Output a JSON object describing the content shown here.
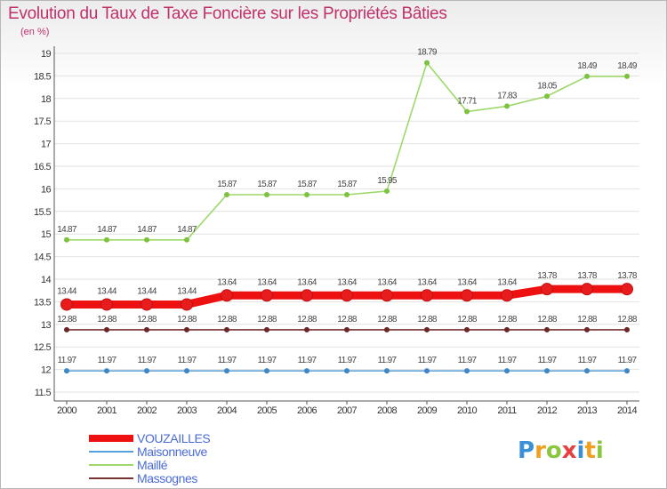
{
  "chart_data": {
    "type": "line",
    "title": "Evolution du Taux de Taxe Foncière sur les Propriétés Bâties",
    "ylabel": "(en %)",
    "xlabel": "",
    "x": [
      "2000",
      "2001",
      "2002",
      "2003",
      "2004",
      "2005",
      "2006",
      "2007",
      "2008",
      "2009",
      "2010",
      "2011",
      "2012",
      "2013",
      "2014"
    ],
    "ylim": [
      11.5,
      19
    ],
    "yticks": [
      "11.5",
      "12",
      "12.5",
      "13",
      "13.5",
      "14",
      "14.5",
      "15",
      "15.5",
      "16",
      "16.5",
      "17",
      "17.5",
      "18",
      "18.5",
      "19"
    ],
    "series": [
      {
        "name": "VOUZAILLES",
        "color": "#ee1111",
        "marker": "#e81c1c",
        "width": 9,
        "values": [
          13.44,
          13.44,
          13.44,
          13.44,
          13.64,
          13.64,
          13.64,
          13.64,
          13.64,
          13.64,
          13.64,
          13.64,
          13.78,
          13.78,
          13.78
        ],
        "labels": [
          "13.44",
          "13.44",
          "13.44",
          "13.44",
          "13.64",
          "13.64",
          "13.64",
          "13.64",
          "13.64",
          "13.64",
          "13.64",
          "13.64",
          "13.78",
          "13.78",
          "13.78"
        ]
      },
      {
        "name": "Maisonneuve",
        "color": "#5aa0d8",
        "marker": "#3f86c6",
        "width": 1.6,
        "values": [
          11.97,
          11.97,
          11.97,
          11.97,
          11.97,
          11.97,
          11.97,
          11.97,
          11.97,
          11.97,
          11.97,
          11.97,
          11.97,
          11.97,
          11.97
        ],
        "labels": [
          "11.97",
          "11.97",
          "11.97",
          "11.97",
          "11.97",
          "11.97",
          "11.97",
          "11.97",
          "11.97",
          "11.97",
          "11.97",
          "11.97",
          "11.97",
          "11.97",
          "11.97"
        ]
      },
      {
        "name": "Maillé",
        "color": "#9fd86a",
        "marker": "#7cc23e",
        "width": 1.6,
        "values": [
          14.87,
          14.87,
          14.87,
          14.87,
          15.87,
          15.87,
          15.87,
          15.87,
          15.95,
          18.79,
          17.71,
          17.83,
          18.05,
          18.49,
          18.49
        ],
        "labels": [
          "14.87",
          "14.87",
          "14.87",
          "14.87",
          "15.87",
          "15.87",
          "15.87",
          "15.87",
          "15.95",
          "18.79",
          "17.71",
          "17.83",
          "18.05",
          "18.49",
          "18.49"
        ]
      },
      {
        "name": "Massognes",
        "color": "#7a3333",
        "marker": "#6a2626",
        "width": 1.6,
        "values": [
          12.88,
          12.88,
          12.88,
          12.88,
          12.88,
          12.88,
          12.88,
          12.88,
          12.88,
          12.88,
          12.88,
          12.88,
          12.88,
          12.88,
          12.88
        ],
        "labels": [
          "12.88",
          "12.88",
          "12.88",
          "12.88",
          "12.88",
          "12.88",
          "12.88",
          "12.88",
          "12.88",
          "12.88",
          "12.88",
          "12.88",
          "12.88",
          "12.88",
          "12.88"
        ]
      }
    ]
  },
  "logo": {
    "text": "Proxiti"
  }
}
